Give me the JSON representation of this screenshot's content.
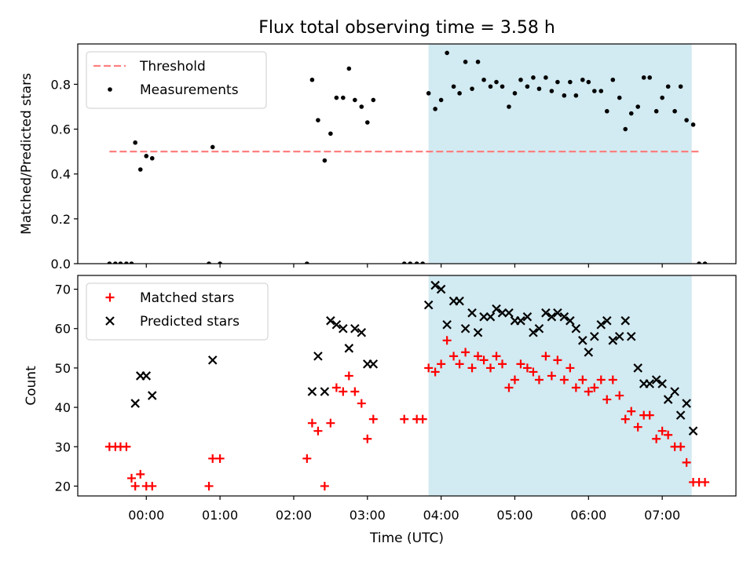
{
  "figure": {
    "title": "Flux total observing time = 3.58 h",
    "xlabel": "Time (UTC)",
    "x_ticks": [
      "00:00",
      "01:00",
      "02:00",
      "03:00",
      "04:00",
      "05:00",
      "06:00",
      "07:00"
    ],
    "x_tick_hours": [
      0,
      1,
      2,
      3,
      4,
      5,
      6,
      7
    ],
    "xlim": [
      -0.93,
      8.0
    ],
    "highlight_span": [
      3.83,
      7.4
    ],
    "colors": {
      "highlight": "#add8e6",
      "threshold": "#ff7f7f",
      "measurements": "#000000",
      "matched": "#ff0000",
      "predicted": "#000000"
    }
  },
  "chart_data": [
    {
      "type": "scatter",
      "ylabel": "Matched/Predicted stars",
      "ylim": [
        0,
        0.98
      ],
      "y_ticks": [
        0.0,
        0.2,
        0.4,
        0.6,
        0.8
      ],
      "legend_position": "upper-left",
      "threshold": {
        "name": "Threshold",
        "x_range": [
          -0.5,
          7.5
        ],
        "value": 0.5
      },
      "series": [
        {
          "name": "Measurements",
          "x": [
            -0.5,
            -0.42,
            -0.35,
            -0.27,
            -0.2,
            -0.15,
            -0.08,
            0.0,
            0.08,
            0.9,
            0.85,
            1.0,
            2.18,
            2.25,
            2.33,
            2.42,
            2.5,
            2.58,
            2.67,
            2.75,
            2.83,
            2.92,
            3.0,
            3.08,
            3.5,
            3.58,
            3.67,
            3.75,
            3.83,
            3.92,
            4.0,
            4.08,
            4.17,
            4.25,
            4.33,
            4.42,
            4.5,
            4.58,
            4.67,
            4.75,
            4.83,
            4.92,
            5.0,
            5.08,
            5.17,
            5.25,
            5.33,
            5.42,
            5.5,
            5.58,
            5.67,
            5.75,
            5.83,
            5.92,
            6.0,
            6.08,
            6.17,
            6.25,
            6.33,
            6.42,
            6.5,
            6.58,
            6.67,
            6.75,
            6.83,
            6.92,
            7.0,
            7.08,
            7.17,
            7.25,
            7.33,
            7.42,
            7.5,
            7.58
          ],
          "y": [
            0.0,
            0.0,
            0.0,
            0.0,
            0.0,
            0.54,
            0.42,
            0.48,
            0.47,
            0.52,
            0.0,
            0.0,
            0.0,
            0.82,
            0.64,
            0.46,
            0.58,
            0.74,
            0.74,
            0.87,
            0.73,
            0.7,
            0.63,
            0.73,
            0.0,
            0.0,
            0.0,
            0.0,
            0.76,
            0.69,
            0.73,
            0.94,
            0.79,
            0.76,
            0.9,
            0.78,
            0.9,
            0.82,
            0.79,
            0.81,
            0.79,
            0.7,
            0.76,
            0.82,
            0.79,
            0.83,
            0.78,
            0.83,
            0.77,
            0.81,
            0.75,
            0.81,
            0.75,
            0.82,
            0.81,
            0.77,
            0.77,
            0.68,
            0.82,
            0.74,
            0.6,
            0.67,
            0.7,
            0.83,
            0.83,
            0.68,
            0.74,
            0.79,
            0.68,
            0.79,
            0.64,
            0.62,
            0.0,
            0.0
          ]
        }
      ]
    },
    {
      "type": "scatter",
      "ylabel": "Count",
      "ylim": [
        17.5,
        73.5
      ],
      "y_ticks": [
        20,
        30,
        40,
        50,
        60,
        70
      ],
      "legend_position": "upper-left",
      "series": [
        {
          "name": "Matched stars",
          "x": [
            -0.5,
            -0.42,
            -0.35,
            -0.27,
            -0.2,
            -0.15,
            -0.08,
            0.0,
            0.08,
            0.85,
            0.9,
            1.0,
            2.18,
            2.25,
            2.33,
            2.42,
            2.5,
            2.58,
            2.67,
            2.75,
            2.83,
            2.92,
            3.0,
            3.08,
            3.5,
            3.67,
            3.75,
            3.83,
            3.92,
            4.0,
            4.08,
            4.17,
            4.25,
            4.33,
            4.42,
            4.5,
            4.58,
            4.67,
            4.75,
            4.83,
            4.92,
            5.0,
            5.08,
            5.17,
            5.25,
            5.33,
            5.42,
            5.5,
            5.58,
            5.67,
            5.75,
            5.83,
            5.92,
            6.0,
            6.08,
            6.17,
            6.25,
            6.33,
            6.42,
            6.5,
            6.58,
            6.67,
            6.75,
            6.83,
            6.92,
            7.0,
            7.08,
            7.17,
            7.25,
            7.33,
            7.42,
            7.5,
            7.58
          ],
          "y": [
            30,
            30,
            30,
            30,
            22,
            20,
            23,
            20,
            20,
            20,
            27,
            27,
            27,
            36,
            34,
            20,
            36,
            45,
            44,
            48,
            44,
            41,
            32,
            37,
            37,
            37,
            37,
            50,
            49,
            51,
            57,
            53,
            51,
            54,
            50,
            53,
            52,
            50,
            53,
            51,
            45,
            47,
            51,
            50,
            49,
            47,
            53,
            48,
            52,
            47,
            50,
            45,
            47,
            44,
            45,
            47,
            42,
            47,
            43,
            37,
            39,
            35,
            38,
            38,
            32,
            34,
            33,
            30,
            30,
            26,
            21,
            21,
            21
          ]
        },
        {
          "name": "Predicted stars",
          "x": [
            -0.15,
            -0.08,
            0.0,
            0.08,
            0.9,
            2.25,
            2.33,
            2.42,
            2.5,
            2.58,
            2.67,
            2.75,
            2.83,
            2.92,
            3.0,
            3.08,
            3.83,
            3.92,
            4.0,
            4.08,
            4.17,
            4.25,
            4.33,
            4.42,
            4.5,
            4.58,
            4.67,
            4.75,
            4.83,
            4.92,
            5.0,
            5.08,
            5.17,
            5.25,
            5.33,
            5.42,
            5.5,
            5.58,
            5.67,
            5.75,
            5.83,
            5.92,
            6.0,
            6.08,
            6.17,
            6.25,
            6.33,
            6.42,
            6.5,
            6.58,
            6.67,
            6.75,
            6.83,
            6.92,
            7.0,
            7.08,
            7.17,
            7.25,
            7.33,
            7.42
          ],
          "y": [
            41,
            48,
            48,
            43,
            52,
            44,
            53,
            44,
            62,
            61,
            60,
            55,
            60,
            59,
            51,
            51,
            66,
            71,
            70,
            61,
            67,
            67,
            60,
            64,
            59,
            63,
            63,
            65,
            64,
            64,
            62,
            62,
            63,
            59,
            60,
            64,
            63,
            64,
            63,
            62,
            60,
            57,
            54,
            58,
            61,
            62,
            57,
            58,
            62,
            58,
            50,
            46,
            46,
            47,
            46,
            42,
            44,
            38,
            41,
            34
          ]
        }
      ]
    }
  ]
}
